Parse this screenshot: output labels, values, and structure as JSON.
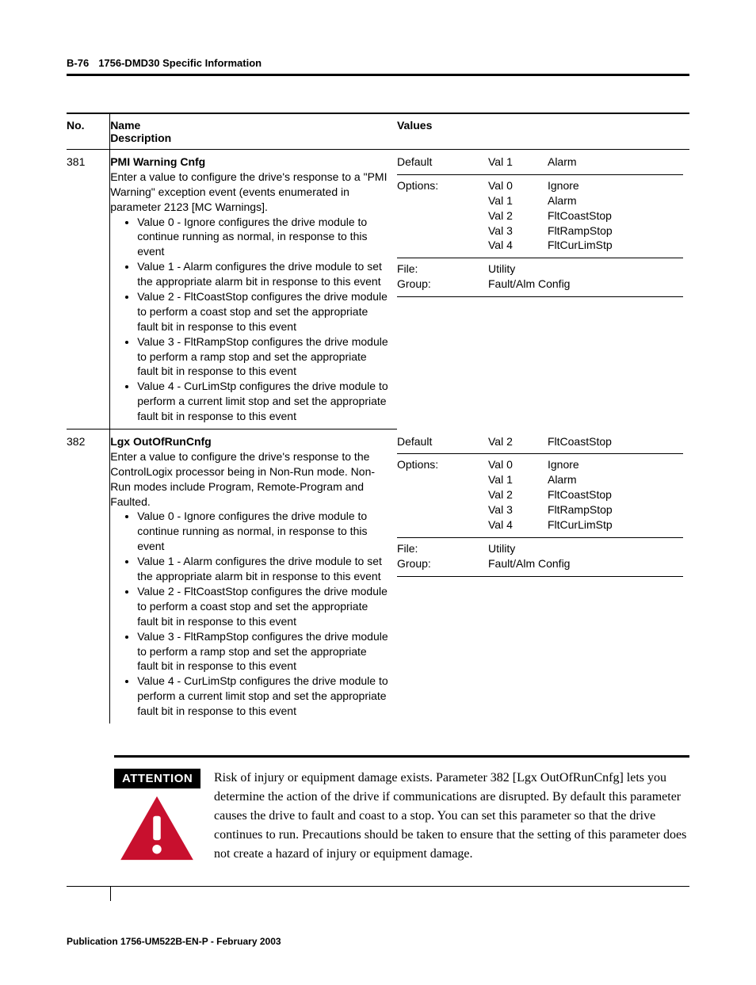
{
  "header": {
    "page_number": "B-76",
    "section_title": "1756-DMD30 Specific Information"
  },
  "table": {
    "head": {
      "no": "No.",
      "name": "Name",
      "description": "Description",
      "values": "Values"
    },
    "rows": [
      {
        "no": "381",
        "name": "PMI Warning Cnfg",
        "intro": "Enter a value to configure the drive's response to a \"PMI Warning\" exception event (events enumerated in parameter 2123 [MC Warnings].",
        "bullets": [
          "Value 0 - Ignore configures the drive module to continue running as normal, in response to this event",
          "Value 1 - Alarm configures the drive module to set the appropriate alarm bit in response to this event",
          "Value 2 - FltCoastStop configures the drive module to perform a coast stop and set the appropriate fault bit in response to this event",
          "Value 3 - FltRampStop configures the drive module to perform a ramp stop and set the appropriate fault bit in response to this event",
          "Value 4 - CurLimStp configures the drive module to perform a current limit stop and set the appropriate fault bit in response to this event"
        ],
        "values": {
          "default_label": "Default",
          "default_val": "Val 1",
          "default_desc": "Alarm",
          "options_label": "Options:",
          "options": [
            {
              "val": "Val 0",
              "desc": "Ignore"
            },
            {
              "val": "Val 1",
              "desc": "Alarm"
            },
            {
              "val": "Val 2",
              "desc": "FltCoastStop"
            },
            {
              "val": "Val 3",
              "desc": "FltRampStop"
            },
            {
              "val": "Val 4",
              "desc": "FltCurLimStp"
            }
          ],
          "file_label": "File:",
          "file_val": "Utility",
          "group_label": "Group:",
          "group_val": "Fault/Alm Config"
        }
      },
      {
        "no": "382",
        "name": "Lgx OutOfRunCnfg",
        "intro": "Enter a value to configure the drive's response to the ControlLogix processor being in Non-Run mode.  Non-Run modes include Program, Remote-Program and Faulted.",
        "bullets": [
          "Value 0 - Ignore configures the drive module to continue running as normal, in response to this event",
          "Value 1 - Alarm configures the drive module to set the appropriate alarm bit in response to this event",
          "Value 2 - FltCoastStop configures the drive module to perform a coast stop and set the appropriate fault bit in response to this event",
          "Value 3 - FltRampStop configures the drive module to perform a ramp stop and set the appropriate fault bit in response to this event",
          "Value 4 - CurLimStp configures the drive module to perform a current limit stop and set the appropriate fault bit in response to this event"
        ],
        "values": {
          "default_label": "Default",
          "default_val": "Val 2",
          "default_desc": "FltCoastStop",
          "options_label": "Options:",
          "options": [
            {
              "val": "Val 0",
              "desc": "Ignore"
            },
            {
              "val": "Val 1",
              "desc": "Alarm"
            },
            {
              "val": "Val 2",
              "desc": "FltCoastStop"
            },
            {
              "val": "Val 3",
              "desc": "FltRampStop"
            },
            {
              "val": "Val 4",
              "desc": "FltCurLimStp"
            }
          ],
          "file_label": "File:",
          "file_val": "Utility",
          "group_label": "Group:",
          "group_val": "Fault/Alm Config"
        }
      }
    ]
  },
  "attention": {
    "badge": "ATTENTION",
    "icon_color": "#c8102e",
    "text": "Risk of injury or equipment damage exists.  Parameter 382 [Lgx OutOfRunCnfg] lets you determine the action of the drive if communications are disrupted.  By default this parameter causes the drive to fault and coast to a stop.  You can set this parameter so that the drive continues to run.  Precautions  should be taken to ensure that the setting of this parameter does not create a hazard of injury or equipment damage."
  },
  "footer": {
    "publication": "Publication 1756-UM522B-EN-P - February 2003"
  }
}
